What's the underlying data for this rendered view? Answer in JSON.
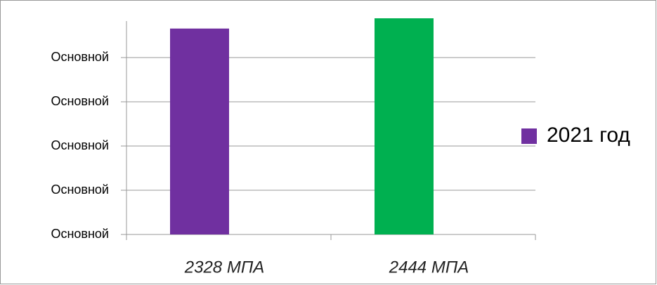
{
  "chart_data": {
    "type": "bar",
    "categories": [
      "2328  МПА",
      "2444  МПА"
    ],
    "series": [
      {
        "name": "2021 год",
        "color": "#7030a0",
        "colors": [
          "#7030a0",
          "#00b050"
        ],
        "values": [
          2328,
          2444
        ]
      }
    ],
    "ylim": [
      0,
      2500
    ],
    "yticks": [
      {
        "value": 0,
        "label": "Основной"
      },
      {
        "value": 500,
        "label": "Основной"
      },
      {
        "value": 1000,
        "label": "Основной"
      },
      {
        "value": 1500,
        "label": "Основной"
      },
      {
        "value": 2000,
        "label": "Основной"
      }
    ],
    "grid": true,
    "legend": "right"
  }
}
